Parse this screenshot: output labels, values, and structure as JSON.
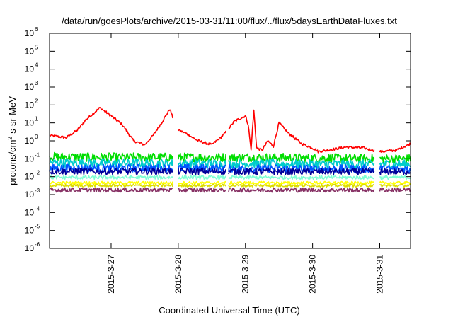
{
  "chart_data": {
    "type": "line",
    "title": "/data/run/goesPlots/archive/2015-03-31/11:00/flux/../flux/5daysEarthDataFluxes.txt",
    "xlabel": "Coordinated Universal Time (UTC)",
    "ylabel": {
      "base": "protons/cm",
      "sup": "2",
      "rest": "-s-sr-MeV"
    },
    "yscale": "log",
    "ylim": [
      1e-06,
      1000000.0
    ],
    "xlim": [
      "2015-03-26T02:00",
      "2015-03-31T11:00"
    ],
    "grid": false,
    "legend": "none",
    "y_ticks": [
      {
        "base": "10",
        "exp": "-6",
        "value": 1e-06
      },
      {
        "base": "10",
        "exp": "-5",
        "value": 1e-05
      },
      {
        "base": "10",
        "exp": "-4",
        "value": 0.0001
      },
      {
        "base": "10",
        "exp": "-3",
        "value": 0.001
      },
      {
        "base": "10",
        "exp": "-2",
        "value": 0.01
      },
      {
        "base": "10",
        "exp": "-1",
        "value": 0.1
      },
      {
        "base": "10",
        "exp": "0",
        "value": 1
      },
      {
        "base": "10",
        "exp": "1",
        "value": 10
      },
      {
        "base": "10",
        "exp": "2",
        "value": 100
      },
      {
        "base": "10",
        "exp": "3",
        "value": 1000
      },
      {
        "base": "10",
        "exp": "4",
        "value": 10000
      },
      {
        "base": "10",
        "exp": "5",
        "value": 100000
      },
      {
        "base": "10",
        "exp": "6",
        "value": 1000000
      }
    ],
    "x_ticks": [
      {
        "label": "2015-3-27",
        "value": "2015-03-27T00:00"
      },
      {
        "label": "2015-3-28",
        "value": "2015-03-28T00:00"
      },
      {
        "label": "2015-3-29",
        "value": "2015-03-29T00:00"
      },
      {
        "label": "2015-3-30",
        "value": "2015-03-30T00:00"
      },
      {
        "label": "2015-3-31",
        "value": "2015-03-31T00:00"
      }
    ],
    "data_gaps": [
      [
        "2015-03-27T22:00",
        "2015-03-28T00:00"
      ],
      [
        "2015-03-28T17:00",
        "2015-03-28T18:00"
      ],
      [
        "2015-03-30T22:00",
        "2015-03-31T00:00"
      ]
    ],
    "series": [
      {
        "color": "#ff0000",
        "noise": 0.07,
        "x": [
          "2015-03-26T02:00",
          "2015-03-26T08:00",
          "2015-03-26T12:00",
          "2015-03-26T15:00",
          "2015-03-26T20:00",
          "2015-03-27T00:00",
          "2015-03-27T04:00",
          "2015-03-27T08:00",
          "2015-03-27T12:00",
          "2015-03-27T15:00",
          "2015-03-27T18:00",
          "2015-03-27T21:00",
          "2015-03-27T22:00",
          "2015-03-28T00:00",
          "2015-03-28T03:00",
          "2015-03-28T07:00",
          "2015-03-28T12:00",
          "2015-03-28T16:00",
          "2015-03-28T20:00",
          "2015-03-29T00:00",
          "2015-03-29T01:00",
          "2015-03-29T02:00",
          "2015-03-29T03:00",
          "2015-03-29T04:00",
          "2015-03-29T06:00",
          "2015-03-29T08:00",
          "2015-03-29T10:00",
          "2015-03-29T12:00",
          "2015-03-29T15:00",
          "2015-03-29T20:00",
          "2015-03-30T00:00",
          "2015-03-30T02:00",
          "2015-03-30T08:00",
          "2015-03-30T12:00",
          "2015-03-30T18:00",
          "2015-03-31T00:00",
          "2015-03-31T06:00",
          "2015-03-31T11:00"
        ],
        "values": [
          2.0,
          1.5,
          4.0,
          15,
          70,
          25,
          8,
          1.0,
          0.6,
          2.0,
          10,
          60,
          20,
          4.0,
          2.5,
          1.0,
          0.6,
          2.0,
          12,
          25,
          8,
          0.3,
          50,
          0.4,
          0.3,
          1.0,
          0.5,
          10,
          3.0,
          0.7,
          0.4,
          0.25,
          0.35,
          0.45,
          0.4,
          0.25,
          0.3,
          0.7
        ]
      },
      {
        "color": "#00dd00",
        "noise": 0.25,
        "x": [
          "2015-03-26T02:00",
          "2015-03-27T00:00",
          "2015-03-28T00:00",
          "2015-03-29T00:00",
          "2015-03-30T00:00",
          "2015-03-31T00:00",
          "2015-03-31T11:00"
        ],
        "values": [
          0.13,
          0.12,
          0.12,
          0.12,
          0.11,
          0.1,
          0.1
        ]
      },
      {
        "color": "#00cccc",
        "noise": 0.25,
        "x": [
          "2015-03-26T02:00",
          "2015-03-28T00:00",
          "2015-03-30T00:00",
          "2015-03-31T11:00"
        ],
        "values": [
          0.06,
          0.055,
          0.05,
          0.05
        ]
      },
      {
        "color": "#0055ff",
        "noise": 0.22,
        "x": [
          "2015-03-26T02:00",
          "2015-03-28T00:00",
          "2015-03-30T00:00",
          "2015-03-31T11:00"
        ],
        "values": [
          0.03,
          0.03,
          0.028,
          0.027
        ]
      },
      {
        "color": "#000099",
        "noise": 0.18,
        "x": [
          "2015-03-26T02:00",
          "2015-03-28T00:00",
          "2015-03-30T00:00",
          "2015-03-31T11:00"
        ],
        "values": [
          0.02,
          0.02,
          0.019,
          0.019
        ]
      },
      {
        "color": "#7fffd4",
        "noise": 0.1,
        "x": [
          "2015-03-26T02:00",
          "2015-03-28T00:00",
          "2015-03-30T00:00",
          "2015-03-31T11:00"
        ],
        "values": [
          0.009,
          0.009,
          0.009,
          0.009
        ]
      },
      {
        "color": "#ffff00",
        "noise": 0.08,
        "x": [
          "2015-03-26T02:00",
          "2015-03-28T00:00",
          "2015-03-30T00:00",
          "2015-03-31T11:00"
        ],
        "values": [
          0.0045,
          0.0045,
          0.0045,
          0.0045
        ]
      },
      {
        "color": "#dddd00",
        "noise": 0.08,
        "x": [
          "2015-03-26T02:00",
          "2015-03-28T00:00",
          "2015-03-30T00:00",
          "2015-03-31T11:00"
        ],
        "values": [
          0.0032,
          0.0032,
          0.0032,
          0.0032
        ]
      },
      {
        "color": "#883366",
        "noise": 0.12,
        "x": [
          "2015-03-26T02:00",
          "2015-03-28T00:00",
          "2015-03-30T00:00",
          "2015-03-31T11:00"
        ],
        "values": [
          0.0018,
          0.0018,
          0.0018,
          0.0018
        ]
      }
    ]
  }
}
